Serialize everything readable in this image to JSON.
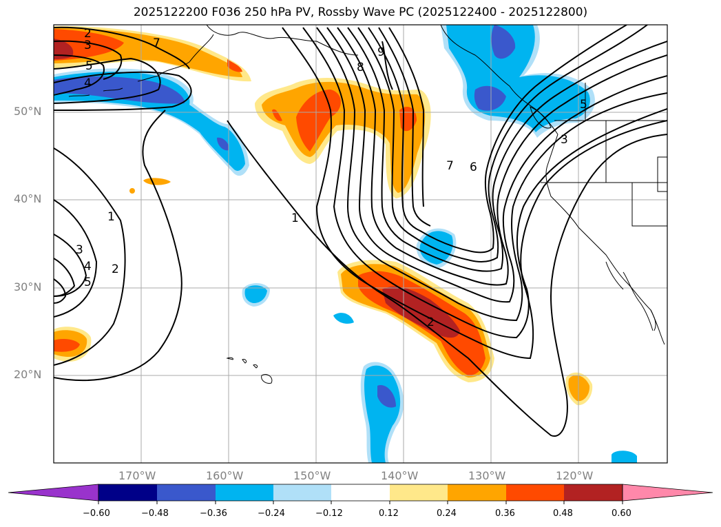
{
  "title": "2025122200 F036 250 hPa PV, Rossby Wave PC (2025122400 - 2025122800)",
  "map": {
    "lon_range": [
      -180,
      -110
    ],
    "lat_range": [
      10,
      60
    ],
    "lat_labels": [
      "50°N",
      "40°N",
      "30°N",
      "20°N"
    ],
    "lon_labels": [
      "170°W",
      "160°W",
      "150°W",
      "140°W",
      "130°W",
      "120°W"
    ],
    "contour_labels": [
      "2",
      "3",
      "5",
      "4",
      "7",
      "9",
      "8",
      "1",
      "6",
      "7",
      "5",
      "3",
      "1",
      "3",
      "4",
      "5",
      "2",
      "2"
    ]
  },
  "colorbar": {
    "colors": [
      "#9933cc",
      "#000088",
      "#3a58cc",
      "#00b4f0",
      "#b0e0f8",
      "#ffffff",
      "#ffe88a",
      "#ffa500",
      "#ff4a00",
      "#b22222",
      "#ff88aa"
    ],
    "tick_labels": [
      "−0.60",
      "−0.48",
      "−0.36",
      "−0.24",
      "−0.12",
      "0.12",
      "0.24",
      "0.36",
      "0.48",
      "0.60"
    ]
  }
}
